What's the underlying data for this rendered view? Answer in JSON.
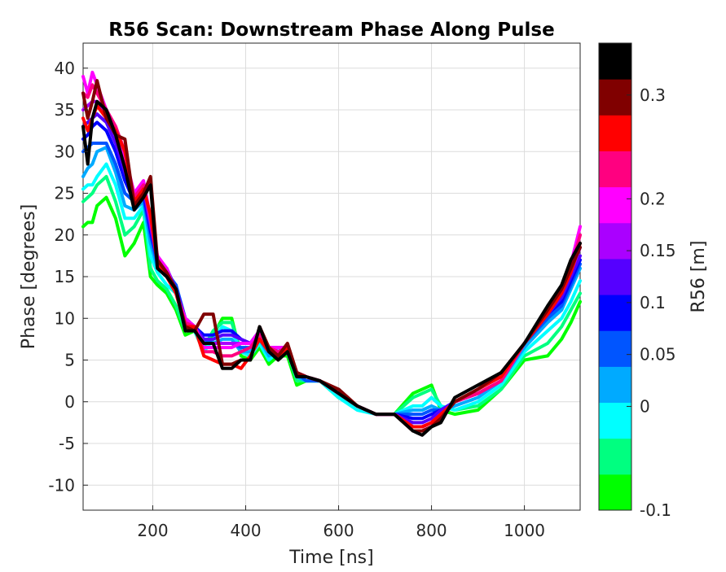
{
  "chart_data": {
    "type": "line",
    "title": "R56 Scan: Downstream Phase Along Pulse",
    "xlabel": "Time [ns]",
    "ylabel": "Phase [degrees]",
    "xlim": [
      50,
      1120
    ],
    "ylim": [
      -13,
      43
    ],
    "xticks": [
      "200",
      "400",
      "600",
      "800",
      "1000"
    ],
    "xtick_values": [
      200,
      400,
      600,
      800,
      1000
    ],
    "yticks": [
      "40",
      "35",
      "30",
      "25",
      "20",
      "15",
      "10",
      "5",
      "0",
      "-5",
      "-10"
    ],
    "ytick_values": [
      40,
      35,
      30,
      25,
      20,
      15,
      10,
      5,
      0,
      -5,
      -10
    ],
    "grid": true,
    "colorbar": {
      "label": "R56 [m]",
      "range": [
        -0.1,
        0.35
      ],
      "tick_labels": [
        "0.3",
        "0.2",
        "0.15",
        "0.1",
        "0.05",
        "0",
        "-0.1"
      ],
      "tick_values": [
        0.3,
        0.2,
        0.15,
        0.1,
        0.05,
        0,
        -0.1
      ],
      "colors": [
        "#00ff00",
        "#00ff80",
        "#00ffff",
        "#00aaff",
        "#0055ff",
        "#0000ff",
        "#5500ff",
        "#aa00ff",
        "#ff00ff",
        "#ff0080",
        "#ff0000",
        "#800000",
        "#000000"
      ]
    },
    "x": [
      50,
      60,
      70,
      80,
      100,
      120,
      140,
      160,
      180,
      195,
      210,
      230,
      250,
      270,
      290,
      310,
      330,
      350,
      370,
      390,
      410,
      430,
      450,
      470,
      490,
      510,
      530,
      560,
      600,
      640,
      680,
      720,
      760,
      780,
      800,
      820,
      850,
      900,
      950,
      1000,
      1050,
      1080,
      1100,
      1120
    ],
    "series": [
      {
        "r56": -0.1,
        "color": "#00ff00",
        "values": [
          21,
          21.5,
          21.5,
          23.5,
          24.5,
          22,
          17.5,
          19,
          21.5,
          15,
          14,
          13,
          11,
          8,
          8.5,
          6,
          8,
          10,
          10,
          5.5,
          5,
          6.5,
          4.5,
          5.5,
          5.5,
          2,
          2.5,
          2.5,
          0.5,
          -0.5,
          -1.5,
          -1.5,
          1,
          1.5,
          2,
          -1,
          -1.5,
          -1,
          1.5,
          5,
          5.5,
          7.5,
          9.5,
          12
        ]
      },
      {
        "r56": -0.05,
        "color": "#00ff80",
        "values": [
          24,
          24.5,
          25,
          26,
          27,
          24,
          20,
          21,
          23,
          16,
          14.5,
          13.5,
          11.5,
          8.5,
          8.5,
          6.5,
          8.5,
          9.5,
          9.5,
          6,
          5.5,
          7,
          5,
          6,
          6,
          2.5,
          2.5,
          2.5,
          0.5,
          -0.5,
          -1.5,
          -1.5,
          0.5,
          1,
          1.5,
          -0.5,
          -1,
          -0.5,
          1.5,
          5.5,
          7,
          9,
          11,
          13
        ]
      },
      {
        "r56": 0,
        "color": "#00ffff",
        "values": [
          25.5,
          26,
          26,
          27,
          28.5,
          26,
          22,
          22,
          23.5,
          17.5,
          15.5,
          14,
          13,
          9,
          8.5,
          6,
          7.5,
          9,
          8.5,
          6,
          5.5,
          7,
          5,
          6,
          6,
          3,
          2.5,
          2.5,
          0.5,
          -1,
          -1.5,
          -1.5,
          -0.5,
          -0.5,
          0.5,
          -0.5,
          -1,
          0,
          2,
          6,
          8.5,
          10,
          12,
          14.5
        ]
      },
      {
        "r56": 0.05,
        "color": "#00aaff",
        "values": [
          27,
          28,
          28.5,
          30,
          30.5,
          27.5,
          23.5,
          23,
          24,
          19,
          16,
          15,
          14,
          9.5,
          9,
          7,
          7,
          7.5,
          7.5,
          6,
          6,
          7.5,
          5.5,
          6,
          6,
          3,
          2.5,
          2.5,
          1,
          -0.5,
          -1.5,
          -1.5,
          -1,
          -1,
          -0.5,
          -1,
          -0.5,
          0.5,
          2.5,
          6.5,
          9.5,
          11,
          13.5,
          16
        ]
      },
      {
        "r56": 0.1,
        "color": "#0055ff",
        "values": [
          30,
          30.5,
          31,
          31,
          31,
          28.5,
          25,
          24,
          24.5,
          20,
          16.5,
          15.5,
          14,
          10,
          9,
          7.5,
          7,
          7,
          7,
          6.5,
          6.5,
          8,
          6,
          6.5,
          6,
          3.5,
          2.5,
          2.5,
          1,
          -0.5,
          -1.5,
          -1.5,
          -1.5,
          -1.5,
          -1,
          -1,
          0,
          1,
          2.5,
          7,
          10,
          11.5,
          14,
          16.5
        ]
      },
      {
        "r56": 0.12,
        "color": "#0000ff",
        "values": [
          31.5,
          32,
          33,
          33.5,
          32.5,
          30,
          26.5,
          24,
          25,
          20.5,
          17,
          15.5,
          13.5,
          10,
          9,
          8,
          8,
          8.5,
          8.5,
          7.5,
          7,
          8.5,
          6.5,
          6.5,
          6.5,
          3.5,
          3,
          2.5,
          1,
          -0.5,
          -1.5,
          -1.5,
          -2,
          -2,
          -1.5,
          -1,
          0,
          1,
          2.5,
          7,
          10.5,
          12,
          14.5,
          17
        ]
      },
      {
        "r56": 0.14,
        "color": "#5500ff",
        "values": [
          33,
          33.5,
          34,
          34.5,
          33.5,
          31,
          27.5,
          24.5,
          25.5,
          21,
          17,
          16,
          13.5,
          10,
          9,
          7.5,
          7.5,
          8,
          8,
          7.5,
          7,
          8.5,
          6.5,
          6.5,
          6.5,
          3.5,
          3,
          2.5,
          1,
          -0.5,
          -1.5,
          -1.5,
          -2.5,
          -2.5,
          -2,
          -1,
          0,
          1,
          2.5,
          7,
          10.5,
          12.5,
          15,
          17.5
        ]
      },
      {
        "r56": 0.16,
        "color": "#aa00ff",
        "values": [
          35,
          35.5,
          36,
          36,
          34.5,
          32,
          28.5,
          25,
          26,
          21.5,
          17,
          16,
          13,
          10,
          9,
          7,
          7,
          7,
          7,
          7,
          7,
          8.5,
          6.5,
          6.5,
          6.5,
          3.5,
          3,
          2.5,
          1,
          -0.5,
          -1.5,
          -1.5,
          -3,
          -3,
          -2.5,
          -1.5,
          0,
          1,
          2.5,
          7,
          11,
          13,
          15.5,
          18.5
        ]
      },
      {
        "r56": 0.18,
        "color": "#ff00ff",
        "values": [
          39,
          37,
          39.5,
          38,
          35,
          33,
          29.5,
          25,
          26.5,
          22,
          17.5,
          16,
          13,
          10,
          9,
          6.5,
          6.5,
          6.5,
          6.5,
          7,
          7,
          8.5,
          6.5,
          6.5,
          6.5,
          3.5,
          3,
          2.5,
          1,
          -0.5,
          -1.5,
          -1.5,
          -3,
          -3,
          -2.5,
          -1.5,
          0,
          1,
          2.5,
          7,
          11,
          13.5,
          16.5,
          21
        ]
      },
      {
        "r56": 0.2,
        "color": "#ff0080",
        "values": [
          37,
          36.5,
          38,
          37,
          35,
          33,
          30,
          24.5,
          26,
          22,
          17,
          15.5,
          13,
          9.5,
          9,
          6,
          6,
          5.5,
          5.5,
          6,
          6.5,
          8,
          6.5,
          6,
          6.5,
          3.5,
          3,
          2.5,
          1,
          -0.5,
          -1.5,
          -1.5,
          -3,
          -3,
          -2.5,
          -1.5,
          0,
          1,
          2.5,
          7,
          11,
          13.5,
          16,
          20
        ]
      },
      {
        "r56": 0.25,
        "color": "#ff0000",
        "values": [
          34,
          32.5,
          34,
          35.5,
          34,
          32.5,
          30,
          24,
          25.5,
          22.5,
          16.5,
          15,
          13,
          9,
          9,
          5.5,
          5,
          4.5,
          4.5,
          4,
          5.5,
          7.5,
          6,
          5.5,
          6.5,
          3.5,
          3,
          2.5,
          1,
          -0.5,
          -1.5,
          -1.5,
          -3,
          -3,
          -2.5,
          -1.5,
          0,
          1.5,
          3,
          7,
          10.5,
          13,
          15.5,
          19
        ]
      },
      {
        "r56": 0.3,
        "color": "#800000",
        "values": [
          37,
          34,
          36,
          38.5,
          34,
          32,
          31.5,
          23.5,
          25,
          27,
          17,
          15.5,
          13.5,
          9,
          8.5,
          10.5,
          10.5,
          4.5,
          4.5,
          5,
          5,
          9,
          6.5,
          5.5,
          7,
          3.5,
          3,
          2.5,
          1.5,
          -0.5,
          -1.5,
          -1.5,
          -3.5,
          -3.5,
          -3,
          -2,
          0,
          1.5,
          3.5,
          7,
          11,
          13.5,
          16,
          18.5
        ]
      },
      {
        "r56": 0.35,
        "color": "#000000",
        "values": [
          33,
          28.5,
          34,
          36,
          35,
          32,
          28,
          23,
          24.5,
          26,
          16,
          15,
          13.5,
          8.5,
          8.5,
          7,
          7,
          4,
          4,
          5,
          5,
          9,
          6,
          5,
          6,
          3,
          3,
          2.5,
          1,
          -0.5,
          -1.5,
          -1.5,
          -3.5,
          -4,
          -3,
          -2.5,
          0.5,
          2,
          3.5,
          7,
          11.5,
          14,
          17,
          19
        ]
      }
    ]
  }
}
